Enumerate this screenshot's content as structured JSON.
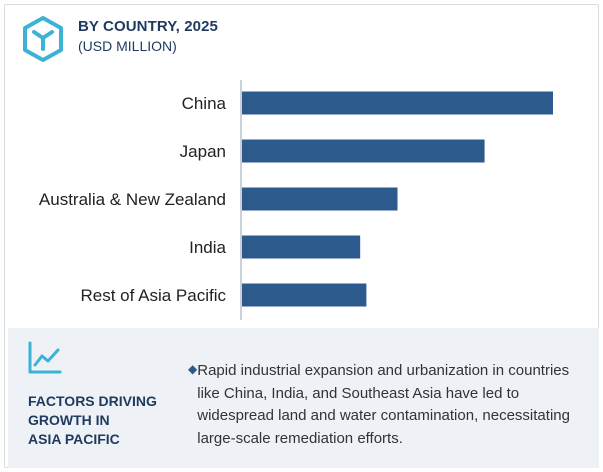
{
  "header": {
    "title": "BY COUNTRY, 2025",
    "subtitle": "(USD MILLION)",
    "icon": "hexagon-logo-icon"
  },
  "chart_data": {
    "type": "bar",
    "orientation": "horizontal",
    "categories": [
      "China",
      "Japan",
      "Australia & New Zealand",
      "India",
      "Rest of Asia Pacific"
    ],
    "values": [
      100,
      78,
      50,
      38,
      40
    ],
    "xlim": [
      0,
      100
    ],
    "bar_color": "#2d5a8c",
    "grid": false
  },
  "factors": {
    "icon": "trend-chart-icon",
    "heading_lines": [
      "FACTORS DRIVING",
      "GROWTH IN",
      "ASIA PACIFIC"
    ],
    "bullet_icon": "diamond-bullet-icon",
    "bullet_text": "Rapid industrial expansion and urbanization in countries like China, India, and Southeast Asia have led to widespread land and water contamination, necessitating large-scale remediation efforts."
  }
}
